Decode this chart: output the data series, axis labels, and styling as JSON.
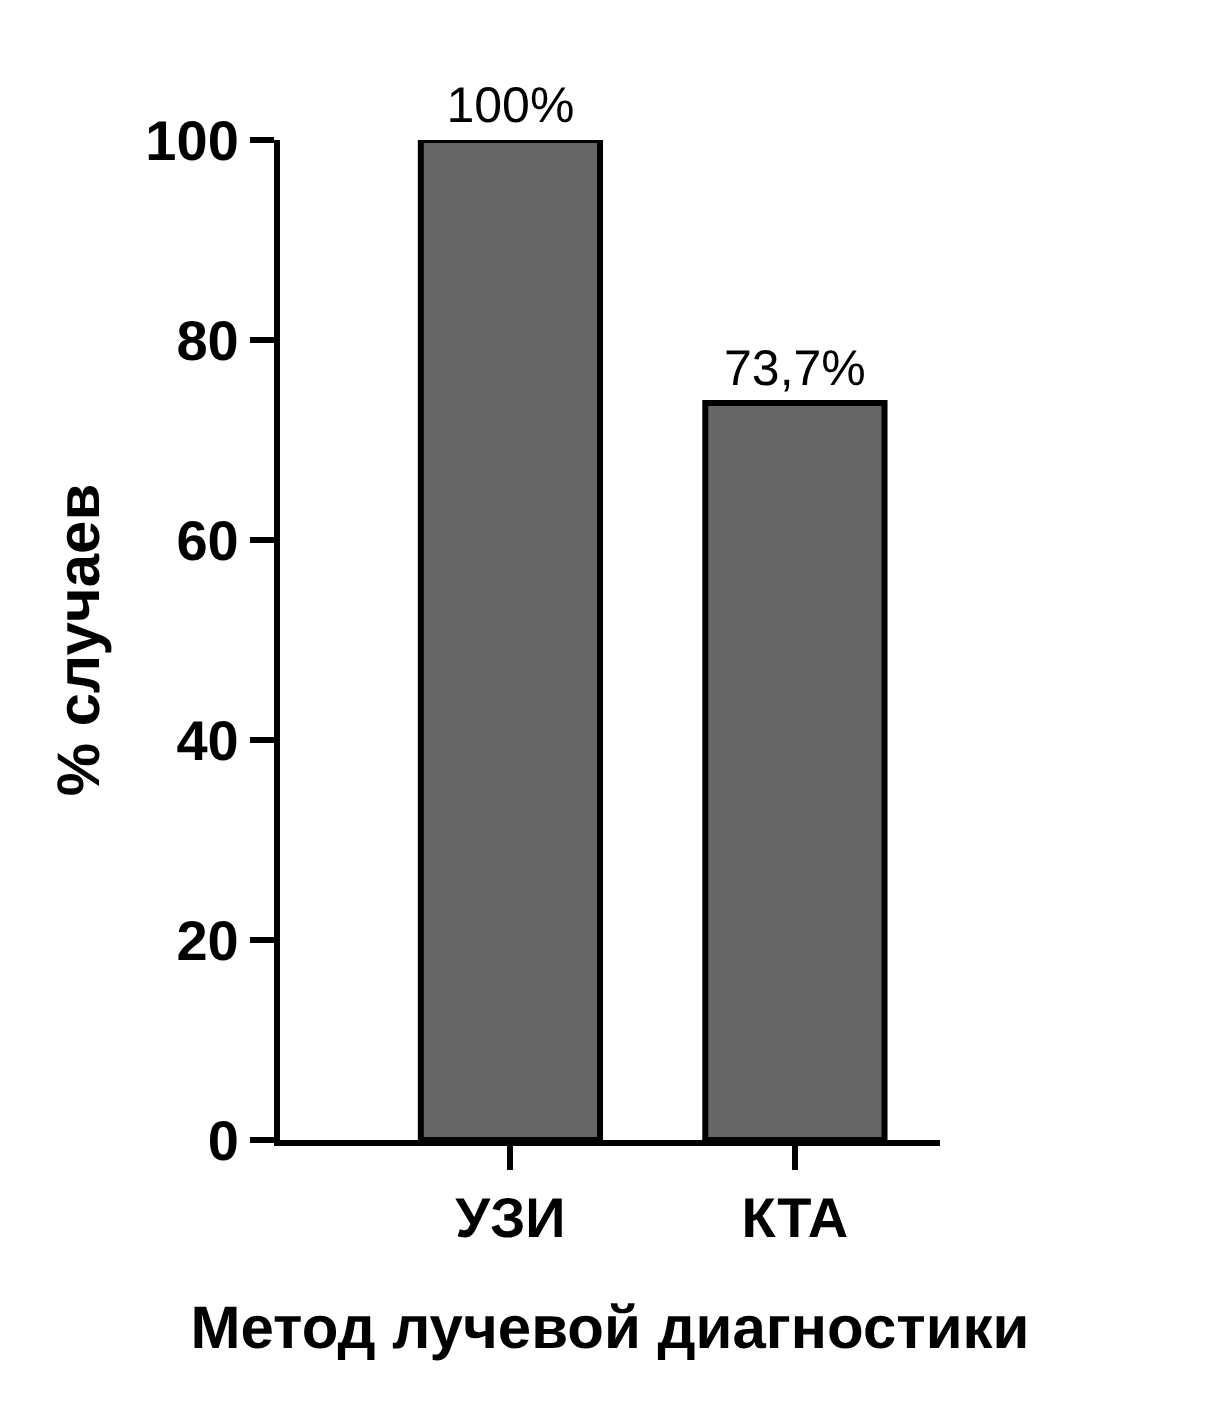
{
  "chart_data": {
    "type": "bar",
    "xlabel": "Метод лучевой диагностики",
    "ylabel": "% случаев",
    "categories": [
      "УЗИ",
      "КТА"
    ],
    "values": [
      100,
      73.7
    ],
    "value_labels": [
      "100%",
      "73,7%"
    ],
    "color": "#666666",
    "ylim": [
      0,
      100
    ],
    "yticks": [
      0,
      20,
      40,
      60,
      80,
      100
    ]
  }
}
